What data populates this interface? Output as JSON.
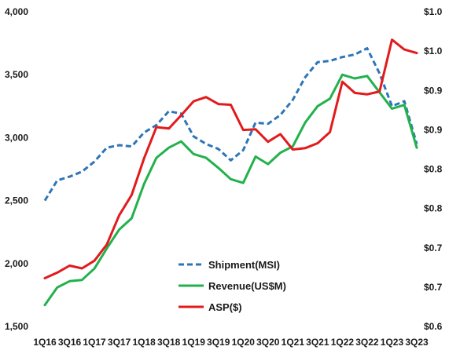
{
  "chart_data": {
    "type": "line",
    "categories": [
      "1Q16",
      "2Q16",
      "3Q16",
      "4Q16",
      "1Q17",
      "2Q17",
      "3Q17",
      "4Q17",
      "1Q18",
      "2Q18",
      "3Q18",
      "4Q18",
      "1Q19",
      "2Q19",
      "3Q19",
      "4Q19",
      "1Q20",
      "2Q20",
      "3Q20",
      "4Q20",
      "1Q21",
      "2Q21",
      "3Q21",
      "4Q21",
      "1Q22",
      "2Q22",
      "3Q22",
      "4Q22",
      "1Q23",
      "2Q23",
      "3Q23"
    ],
    "x_tick_labels": [
      "1Q16",
      "3Q16",
      "1Q17",
      "3Q17",
      "1Q18",
      "3Q18",
      "1Q19",
      "3Q19",
      "1Q20",
      "3Q20",
      "1Q21",
      "3Q21",
      "1Q22",
      "3Q22",
      "1Q23",
      "3Q23"
    ],
    "left_axis": {
      "ylim": [
        1500,
        4000
      ],
      "tick_labels": [
        "1,500",
        "2,000",
        "2,500",
        "3,000",
        "3,500",
        "4,000"
      ],
      "tick_values": [
        1500,
        2000,
        2500,
        3000,
        3500,
        4000
      ]
    },
    "right_axis": {
      "ylim": [
        0.6,
        1.05
      ],
      "tick_labels": [
        "$0.6",
        "$0.7",
        "$0.7",
        "$0.8",
        "$0.8",
        "$0.9",
        "$0.9",
        "$1.0",
        "$1.0"
      ]
    },
    "grid": false,
    "legend_position": "bottom-center",
    "series": [
      {
        "name": "Shipment(MSI)",
        "axis": "left",
        "color": "#2e75b6",
        "dash": true,
        "values": [
          2500,
          2660,
          2690,
          2730,
          2810,
          2920,
          2940,
          2930,
          3040,
          3100,
          3210,
          3190,
          3010,
          2950,
          2910,
          2820,
          2900,
          3120,
          3110,
          3180,
          3300,
          3480,
          3600,
          3610,
          3640,
          3660,
          3710,
          3510,
          3250,
          3290,
          2950
        ]
      },
      {
        "name": "Revenue(US$M)",
        "axis": "left",
        "color": "#22b14c",
        "dash": false,
        "values": [
          1670,
          1810,
          1860,
          1870,
          1960,
          2120,
          2270,
          2360,
          2630,
          2840,
          2920,
          2970,
          2870,
          2840,
          2760,
          2670,
          2640,
          2850,
          2790,
          2880,
          2930,
          3120,
          3250,
          3310,
          3500,
          3470,
          3490,
          3360,
          3230,
          3260,
          2920
        ]
      },
      {
        "name": "ASP($)",
        "axis": "right",
        "color": "#e31a1c",
        "dash": false,
        "values": [
          0.669,
          0.677,
          0.687,
          0.683,
          0.694,
          0.717,
          0.759,
          0.788,
          0.84,
          0.885,
          0.883,
          0.902,
          0.922,
          0.928,
          0.918,
          0.917,
          0.881,
          0.882,
          0.864,
          0.875,
          0.853,
          0.855,
          0.862,
          0.878,
          0.95,
          0.934,
          0.932,
          0.936,
          1.01,
          0.996,
          0.991
        ]
      }
    ]
  }
}
